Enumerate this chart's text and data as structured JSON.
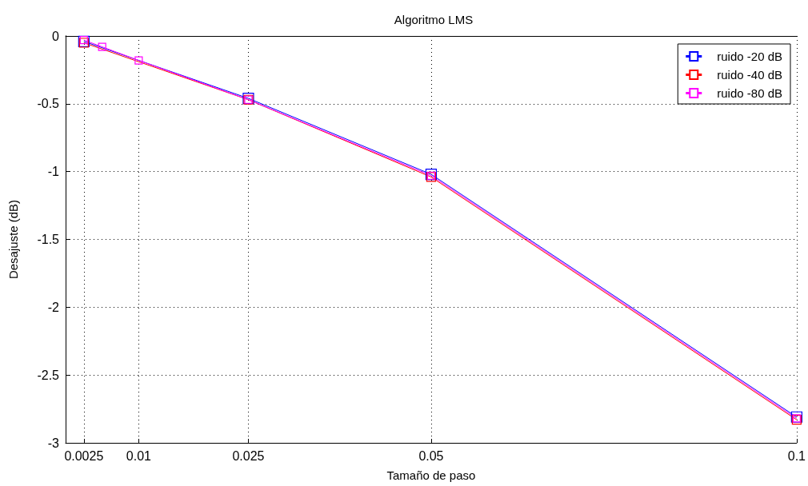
{
  "chart_data": {
    "type": "line",
    "title": "Algoritmo LMS",
    "xlabel": "Tamaño de paso",
    "ylabel": "Desajuste (dB)",
    "series": [
      {
        "name": "ruido -20 dB",
        "color": "#0000ff",
        "x": [
          0.0025,
          0.025,
          0.05,
          0.1
        ],
        "values": [
          -0.04,
          -0.46,
          -1.02,
          -2.81
        ]
      },
      {
        "name": "ruido -40 dB",
        "color": "#ff0000",
        "x": [
          0.0025,
          0.025,
          0.05,
          0.1
        ],
        "values": [
          -0.05,
          -0.47,
          -1.04,
          -2.83
        ]
      },
      {
        "name": "ruido -80 dB",
        "color": "#ff00ff",
        "x": [
          0.0025,
          0.005,
          0.01,
          0.025,
          0.05,
          0.1
        ],
        "values": [
          -0.03,
          -0.08,
          -0.18,
          -0.47,
          -1.03,
          -2.82
        ]
      }
    ],
    "xlim": [
      0,
      0.1
    ],
    "xticks": [
      0.0025,
      0.01,
      0.025,
      0.05,
      0.1
    ],
    "ylim": [
      -3,
      0
    ],
    "yticks": [
      -3,
      -2.5,
      -2,
      -1.5,
      -1,
      -0.5,
      0
    ],
    "grid": true,
    "legend": "top right",
    "marker": "square",
    "line_style": "solid"
  }
}
